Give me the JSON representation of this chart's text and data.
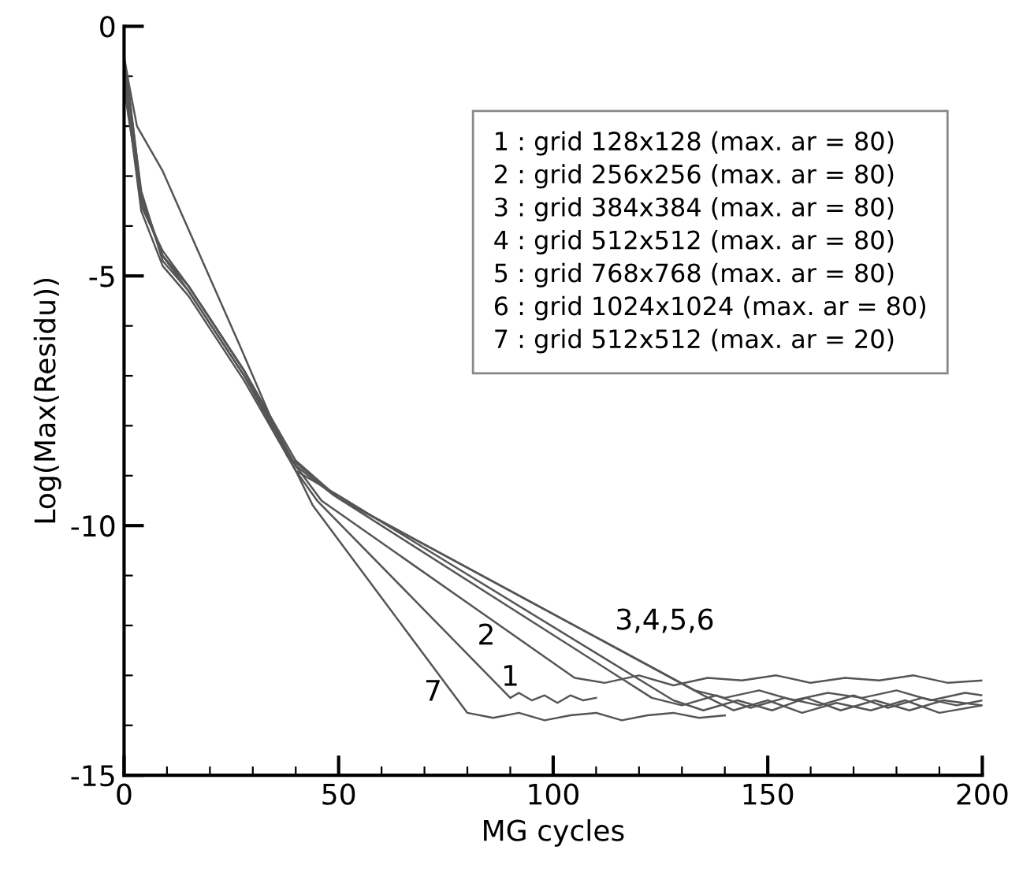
{
  "chart_data": {
    "type": "line",
    "xlabel": "MG cycles",
    "ylabel": "Log(Max(Residu))",
    "xlim": [
      0,
      200
    ],
    "ylim": [
      -15,
      0
    ],
    "xticks": [
      0,
      {
        "value": 10,
        "label": null
      },
      {
        "value": 20,
        "label": null
      },
      {
        "value": 30,
        "label": null
      },
      {
        "value": 40,
        "label": null
      },
      50,
      {
        "value": 60,
        "label": null
      },
      {
        "value": 70,
        "label": null
      },
      {
        "value": 80,
        "label": null
      },
      {
        "value": 90,
        "label": null
      },
      100,
      {
        "value": 110,
        "label": null
      },
      {
        "value": 120,
        "label": null
      },
      {
        "value": 130,
        "label": null
      },
      {
        "value": 140,
        "label": null
      },
      150,
      {
        "value": 160,
        "label": null
      },
      {
        "value": 170,
        "label": null
      },
      {
        "value": 180,
        "label": null
      },
      {
        "value": 190,
        "label": null
      },
      200
    ],
    "yticks": [
      -15,
      {
        "value": -14,
        "label": null
      },
      {
        "value": -13,
        "label": null
      },
      {
        "value": -12,
        "label": null
      },
      {
        "value": -11,
        "label": null
      },
      -10,
      {
        "value": -9,
        "label": null
      },
      {
        "value": -8,
        "label": null
      },
      {
        "value": -7,
        "label": null
      },
      {
        "value": -6,
        "label": null
      },
      -5,
      {
        "value": -4,
        "label": null
      },
      {
        "value": -3,
        "label": null
      },
      {
        "value": -2,
        "label": null
      },
      {
        "value": -1,
        "label": null
      },
      0
    ],
    "grid": false,
    "legend": false,
    "marker": "none",
    "line_style": "solid",
    "series": [
      {
        "color": "#555555",
        "x": [
          0,
          1,
          4,
          9,
          15,
          28,
          40,
          45,
          90,
          92,
          95,
          98,
          101,
          104,
          107,
          110
        ],
        "values": [
          -0.8,
          -1.5,
          -3.5,
          -4.6,
          -5.3,
          -7.0,
          -8.9,
          -9.5,
          -13.45,
          -13.35,
          -13.5,
          -13.4,
          -13.55,
          -13.4,
          -13.5,
          -13.45
        ]
      },
      {
        "color": "#555555",
        "x": [
          0,
          1,
          4,
          9,
          15,
          28,
          40,
          46,
          105,
          112,
          120,
          128,
          136,
          144,
          152,
          160,
          168,
          176,
          184,
          192,
          200
        ],
        "values": [
          -1.0,
          -1.6,
          -3.6,
          -4.5,
          -5.2,
          -6.9,
          -8.8,
          -9.5,
          -13.05,
          -13.15,
          -13.0,
          -13.2,
          -13.05,
          -13.1,
          -13.0,
          -13.15,
          -13.05,
          -13.1,
          -13.0,
          -13.15,
          -13.1
        ]
      },
      {
        "color": "#555555",
        "x": [
          0,
          1,
          4,
          9,
          15,
          28,
          40,
          49,
          123,
          130,
          138,
          146,
          154,
          162,
          170,
          178,
          186,
          194,
          200
        ],
        "values": [
          -0.9,
          -1.3,
          -3.3,
          -4.7,
          -5.3,
          -7.0,
          -8.8,
          -9.4,
          -13.45,
          -13.6,
          -13.4,
          -13.65,
          -13.45,
          -13.6,
          -13.4,
          -13.65,
          -13.45,
          -13.6,
          -13.5
        ]
      },
      {
        "color": "#555555",
        "x": [
          0,
          1,
          4,
          9,
          15,
          28,
          40,
          50,
          128,
          135,
          143,
          151,
          159,
          167,
          175,
          183,
          191,
          200
        ],
        "values": [
          -1.1,
          -1.7,
          -3.7,
          -4.8,
          -5.4,
          -7.1,
          -8.9,
          -9.4,
          -13.5,
          -13.7,
          -13.5,
          -13.7,
          -13.45,
          -13.7,
          -13.5,
          -13.7,
          -13.5,
          -13.6
        ]
      },
      {
        "color": "#555555",
        "x": [
          0,
          1,
          4,
          9,
          15,
          28,
          40,
          50,
          133,
          140,
          148,
          156,
          164,
          172,
          180,
          188,
          196,
          200
        ],
        "values": [
          -0.7,
          -1.2,
          -3.4,
          -4.6,
          -5.2,
          -6.9,
          -8.7,
          -9.45,
          -13.3,
          -13.45,
          -13.3,
          -13.5,
          -13.35,
          -13.45,
          -13.3,
          -13.5,
          -13.35,
          -13.4
        ]
      },
      {
        "color": "#555555",
        "x": [
          0,
          1,
          3,
          9,
          27,
          38,
          50,
          135,
          142,
          150,
          158,
          166,
          174,
          182,
          190,
          200
        ],
        "values": [
          -0.6,
          -1.1,
          -2.0,
          -2.9,
          -6.4,
          -8.6,
          -9.45,
          -13.4,
          -13.7,
          -13.5,
          -13.75,
          -13.55,
          -13.7,
          -13.5,
          -13.75,
          -13.6
        ]
      },
      {
        "color": "#555555",
        "x": [
          0,
          1,
          4,
          9,
          15,
          28,
          40,
          44,
          80,
          86,
          92,
          98,
          104,
          110,
          116,
          122,
          128,
          134,
          140
        ],
        "values": [
          -1.2,
          -1.8,
          -3.4,
          -4.6,
          -5.2,
          -6.9,
          -8.9,
          -9.6,
          -13.75,
          -13.85,
          -13.75,
          -13.9,
          -13.8,
          -13.75,
          -13.9,
          -13.8,
          -13.75,
          -13.85,
          -13.8
        ]
      }
    ],
    "annotations": [
      "1 : grid 128x128 (max. ar = 80)",
      "2 : grid 256x256 (max. ar = 80)",
      "3 : grid 384x384 (max. ar = 80)",
      "4 : grid 512x512 (max. ar = 80)",
      "5 : grid 768x768 (max. ar = 80)",
      "6 : grid 1024x1024 (max. ar = 80)",
      "7 : grid 512x512 (max. ar = 20)",
      "1",
      "2",
      "7",
      "3,4,5,6"
    ]
  }
}
